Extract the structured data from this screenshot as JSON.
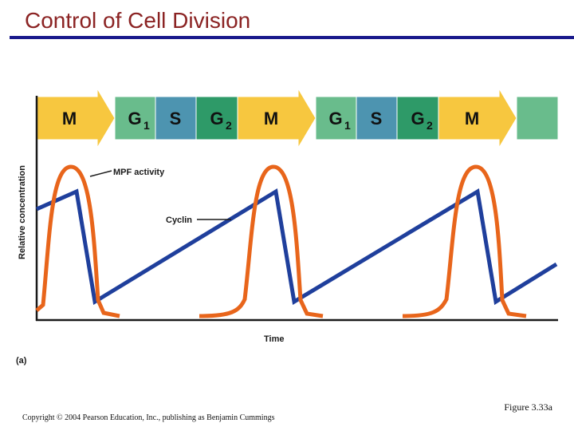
{
  "title": "Control of Cell Division",
  "phases": [
    {
      "label": "M",
      "sub": "",
      "kind": "M"
    },
    {
      "label": "G",
      "sub": "1",
      "kind": "G1"
    },
    {
      "label": "S",
      "sub": "",
      "kind": "S"
    },
    {
      "label": "G",
      "sub": "2",
      "kind": "G2"
    },
    {
      "label": "M",
      "sub": "",
      "kind": "M"
    },
    {
      "label": "G",
      "sub": "1",
      "kind": "G1"
    },
    {
      "label": "S",
      "sub": "",
      "kind": "S"
    },
    {
      "label": "G",
      "sub": "2",
      "kind": "G2"
    },
    {
      "label": "M",
      "sub": "",
      "kind": "M"
    },
    {
      "label": "",
      "sub": "",
      "kind": "G1"
    }
  ],
  "colors": {
    "M": "#f7c73f",
    "G1": "#69bc8c",
    "S": "#4d94b0",
    "G2": "#2e9a68",
    "mpf": "#e8651b",
    "cyclin": "#1f3f9c",
    "title": "#8b2323",
    "title_rule": "#1a1a8c"
  },
  "y_axis_label": "Relative concentration",
  "x_axis_label": "Time",
  "mpf_label": "MPF activity",
  "cyclin_label": "Cyclin",
  "panel_label": "(a)",
  "figure_label": "Figure 3.33a",
  "copyright": "Copyright © 2004 Pearson Education, Inc., publishing as Benjamin Cummings"
}
